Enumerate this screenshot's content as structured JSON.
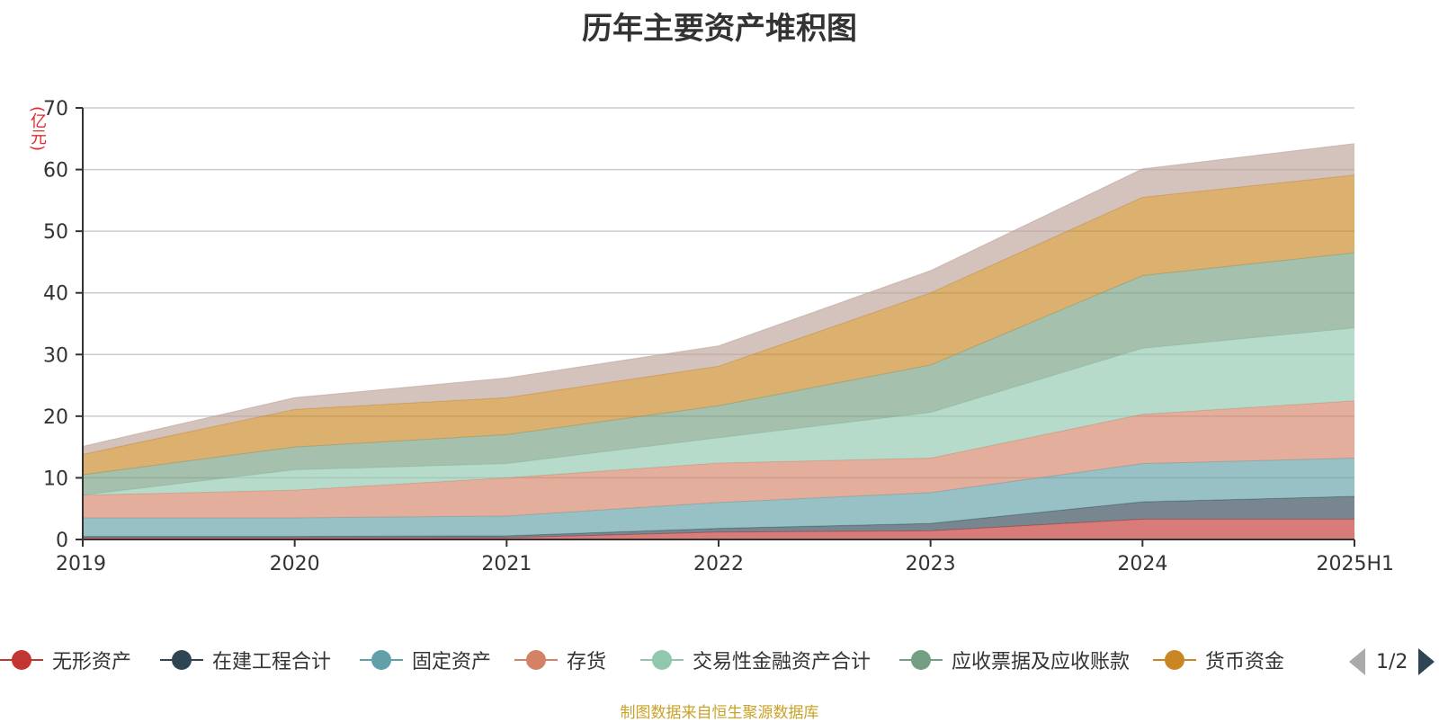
{
  "title": "历年主要资产堆积图",
  "unit_label": "(亿元)",
  "source": "制图数据来自恒生聚源数据库",
  "legend_page": "1/2",
  "chart_data": {
    "type": "area",
    "stacked": true,
    "title": "历年主要资产堆积图",
    "ylabel": "(亿元)",
    "ylim": [
      0,
      70
    ],
    "yticks": [
      0,
      10,
      20,
      30,
      40,
      50,
      60,
      70
    ],
    "grid": true,
    "legend_position": "bottom",
    "categories": [
      "2019",
      "2020",
      "2021",
      "2022",
      "2023",
      "2024",
      "2025H1"
    ],
    "series": [
      {
        "name": "无形资产",
        "color": "#c23531",
        "values": [
          0.3,
          0.3,
          0.3,
          1.2,
          1.4,
          3.3,
          3.3
        ]
      },
      {
        "name": "在建工程合计",
        "color": "#2f4554",
        "values": [
          0.2,
          0.2,
          0.3,
          0.6,
          1.2,
          2.8,
          3.7
        ]
      },
      {
        "name": "固定资产",
        "color": "#61a0a8",
        "values": [
          3.0,
          3.0,
          3.2,
          4.2,
          5.0,
          6.2,
          6.2
        ]
      },
      {
        "name": "存货",
        "color": "#d48265",
        "values": [
          3.7,
          4.5,
          6.2,
          6.4,
          5.6,
          8.0,
          9.3
        ]
      },
      {
        "name": "交易性金融资产合计",
        "color": "#91c7ae",
        "values": [
          0.0,
          3.3,
          2.3,
          4.1,
          7.4,
          10.7,
          11.8
        ]
      },
      {
        "name": "应收票据及应收账款",
        "color": "#749f83",
        "values": [
          3.3,
          3.7,
          4.7,
          5.2,
          7.7,
          11.8,
          12.2
        ]
      },
      {
        "name": "货币资金",
        "color": "#ca8622",
        "values": [
          3.3,
          6.1,
          6.0,
          6.4,
          11.7,
          12.7,
          12.6
        ]
      },
      {
        "name": "",
        "color": "#bda29a",
        "values": [
          1.3,
          1.9,
          3.2,
          3.3,
          3.6,
          4.6,
          5.1
        ]
      }
    ]
  },
  "colors": {
    "axis": "#333333",
    "grid": "#cccccc",
    "tick_text": "#333333",
    "unit_text": "#e0292b",
    "source_text": "#c9a227"
  }
}
